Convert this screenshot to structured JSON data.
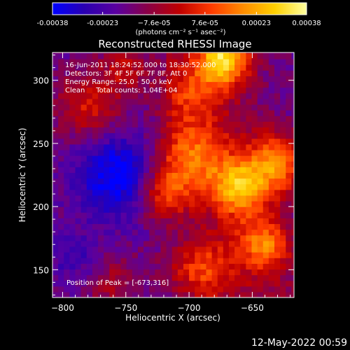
{
  "chart_data": {
    "type": "heatmap",
    "title": "Reconstructed RHESSI Image",
    "xlabel": "Heliocentric X (arcsec)",
    "ylabel": "Heliocentric Y (arcsec)",
    "xlim": [
      -808,
      -617
    ],
    "ylim": [
      128,
      322
    ],
    "x_ticks": [
      -800,
      -750,
      -700,
      -650
    ],
    "y_ticks": [
      150,
      200,
      250,
      300
    ],
    "x_tick_labels": [
      "−800",
      "−750",
      "−700",
      "−650"
    ],
    "y_tick_labels": [
      "150",
      "200",
      "250",
      "300"
    ],
    "colorbar": {
      "range": [
        -0.00038,
        0.00038
      ],
      "ticks": [
        -0.00038,
        -0.00023,
        -7.6e-05,
        7.6e-05,
        0.00023,
        0.00038
      ],
      "tick_labels": [
        "-0.00038",
        "-0.00023",
        "−7.6e-05",
        "7.6e-05",
        "0.00023",
        "0.00038"
      ],
      "unit_label": "(photons cm⁻² s⁻¹ asec⁻²)",
      "colors": [
        "#0000ff",
        "#2a00b0",
        "#5a00a0",
        "#8a0046",
        "#c00000",
        "#ff3b00",
        "#ff8c00",
        "#ffd000",
        "#ffffa0"
      ]
    },
    "annotations": [
      "16-Jun-2011 18:24:52.000 to 18:30:52.000",
      "Detectors: 3F 4F 5F 6F 7F 8F, Att 0",
      "Energy Range: 25.0 - 50.0 keV",
      "Clean     Total counts: 1.04E+04",
      "Position of Peak = [-673,316]"
    ],
    "peak": {
      "x": -673,
      "y": 316
    }
  },
  "footer": {
    "timestamp": "12-May-2022 00:59"
  }
}
